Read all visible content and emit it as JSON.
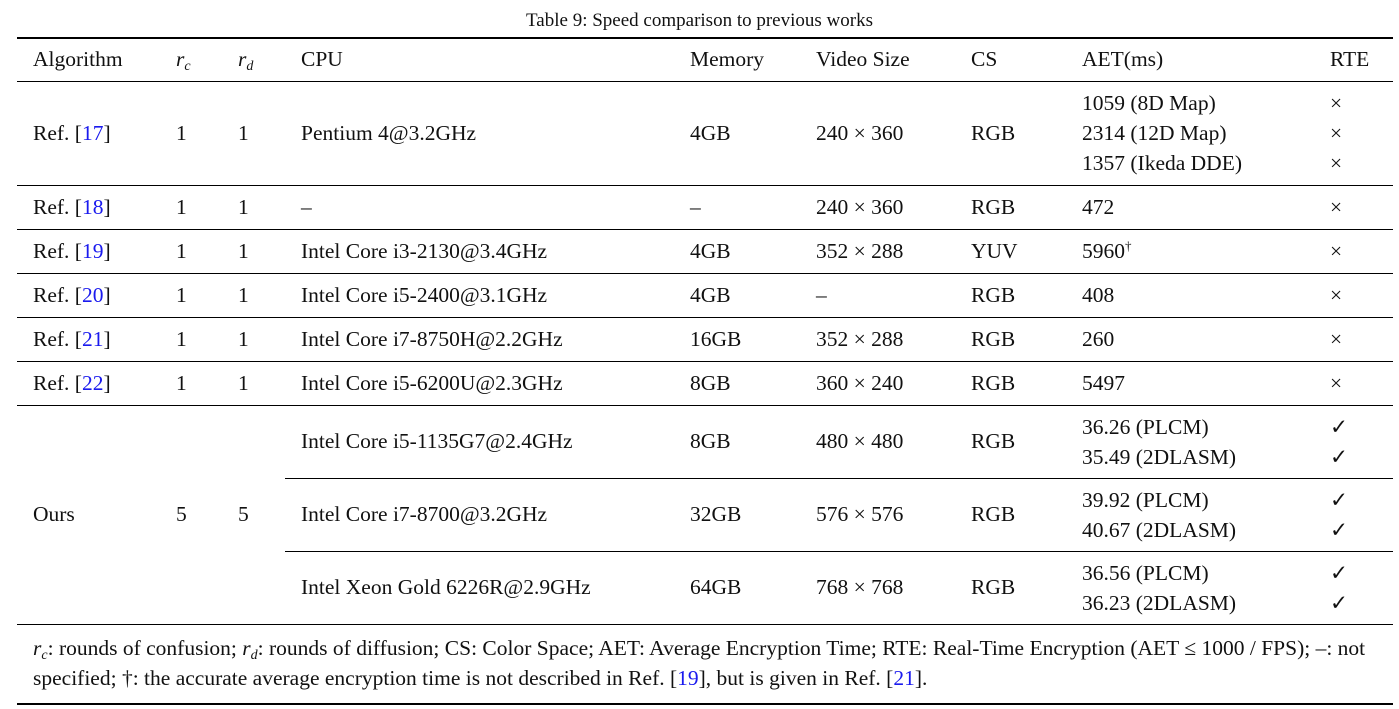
{
  "caption": "Table 9: Speed comparison to previous works",
  "headers": [
    "Algorithm",
    "r",
    "r",
    "CPU",
    "Memory",
    "Video Size",
    "CS",
    "AET(ms)",
    "RTE"
  ],
  "header_subscripts": {
    "1": "c",
    "2": "d"
  },
  "rows": [
    {
      "prefix": "Ref. [",
      "ref": "17",
      "suffix": "]",
      "rc": "1",
      "rd": "1",
      "cpu": "Pentium 4@3.2GHz",
      "memory": "4GB",
      "video": "240 × 360",
      "cs": "RGB",
      "aet": [
        "1059 (8D Map)",
        "2314 (12D Map)",
        "1357 (Ikeda DDE)"
      ],
      "rte": [
        "×",
        "×",
        "×"
      ]
    },
    {
      "prefix": "Ref. [",
      "ref": "18",
      "suffix": "]",
      "rc": "1",
      "rd": "1",
      "cpu": "–",
      "memory": "–",
      "video": "240 × 360",
      "cs": "RGB",
      "aet": [
        "472"
      ],
      "rte": [
        "×"
      ]
    },
    {
      "prefix": "Ref. [",
      "ref": "19",
      "suffix": "]",
      "rc": "1",
      "rd": "1",
      "cpu": "Intel Core i3-2130@3.4GHz",
      "memory": "4GB",
      "video": "352 × 288",
      "cs": "YUV",
      "aet": [
        "5960"
      ],
      "aet_sup": "†",
      "rte": [
        "×"
      ]
    },
    {
      "prefix": "Ref. [",
      "ref": "20",
      "suffix": "]",
      "rc": "1",
      "rd": "1",
      "cpu": "Intel Core i5-2400@3.1GHz",
      "memory": "4GB",
      "video": "–",
      "cs": "RGB",
      "aet": [
        "408"
      ],
      "rte": [
        "×"
      ]
    },
    {
      "prefix": "Ref. [",
      "ref": "21",
      "suffix": "]",
      "rc": "1",
      "rd": "1",
      "cpu": "Intel Core i7-8750H@2.2GHz",
      "memory": "16GB",
      "video": "352 × 288",
      "cs": "RGB",
      "aet": [
        "260"
      ],
      "rte": [
        "×"
      ]
    },
    {
      "prefix": "Ref. [",
      "ref": "22",
      "suffix": "]",
      "rc": "1",
      "rd": "1",
      "cpu": "Intel Core i5-6200U@2.3GHz",
      "memory": "8GB",
      "video": "360 × 240",
      "cs": "RGB",
      "aet": [
        "5497"
      ],
      "rte": [
        "×"
      ]
    }
  ],
  "ours": {
    "label": "Ours",
    "rc": "5",
    "rd": "5",
    "configs": [
      {
        "cpu": "Intel Core i5-1135G7@2.4GHz",
        "memory": "8GB",
        "video": "480 × 480",
        "cs": "RGB",
        "aet": [
          "36.26 (PLCM)",
          "35.49 (2DLASM)"
        ],
        "rte": [
          "✓",
          "✓"
        ]
      },
      {
        "cpu": "Intel Core i7-8700@3.2GHz",
        "memory": "32GB",
        "video": "576 × 576",
        "cs": "RGB",
        "aet": [
          "39.92 (PLCM)",
          "40.67 (2DLASM)"
        ],
        "rte": [
          "✓",
          "✓"
        ]
      },
      {
        "cpu": "Intel Xeon Gold 6226R@2.9GHz",
        "memory": "64GB",
        "video": "768 × 768",
        "cs": "RGB",
        "aet": [
          "36.56 (PLCM)",
          "36.23 (2DLASM)"
        ],
        "rte": [
          "✓",
          "✓"
        ]
      }
    ]
  },
  "footnote": [
    {
      "t": "r",
      "it": true,
      "sub": "c"
    },
    {
      "t": ": rounds of confusion; "
    },
    {
      "t": "r",
      "it": true,
      "sub": "d"
    },
    {
      "t": ": rounds of diffusion; CS: Color Space; AET: Average Encryption Time; RTE: Real-Time Encryption (AET ≤ 1000 / FPS); –: not specified; †: the accurate average encryption time is not described in Ref. ["
    },
    {
      "t": "19",
      "ref": true
    },
    {
      "t": "], but is given in Ref. ["
    },
    {
      "t": "21",
      "ref": true
    },
    {
      "t": "]."
    }
  ],
  "colors": {
    "citation": "#1a1aee",
    "text": "#111111"
  }
}
